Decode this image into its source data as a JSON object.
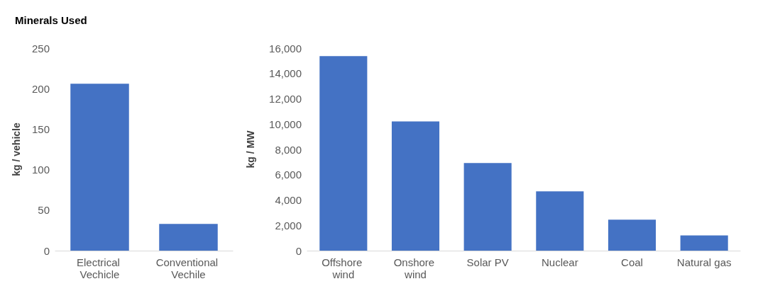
{
  "chart_data": [
    {
      "type": "bar",
      "title": "Minerals Used",
      "ylabel": "kg / vehicle",
      "categories": [
        "Electrical Vechicle",
        "Conventional Vechile"
      ],
      "values": [
        206,
        33
      ],
      "color": "#4472c4",
      "ylim": [
        0,
        250
      ],
      "yticks": [
        0,
        50,
        100,
        150,
        200,
        250
      ],
      "grid": false
    },
    {
      "type": "bar",
      "ylabel": "kg / MW",
      "categories": [
        "Offshore wind",
        "Onshore wind",
        "Solar PV",
        "Nuclear",
        "Coal",
        "Natural gas"
      ],
      "values": [
        15370,
        10210,
        6930,
        4690,
        2450,
        1200
      ],
      "color": "#4472c4",
      "ylim": [
        0,
        16000
      ],
      "yticks": [
        0,
        {
          "value": 2000,
          "label": "2,000"
        },
        {
          "value": 4000,
          "label": "4,000"
        },
        {
          "value": 6000,
          "label": "6,000"
        },
        {
          "value": 8000,
          "label": "8,000"
        },
        {
          "value": 10000,
          "label": "10,000"
        },
        {
          "value": 12000,
          "label": "12,000"
        },
        {
          "value": 14000,
          "label": "14,000"
        },
        {
          "value": 16000,
          "label": "16,000"
        }
      ],
      "grid": false
    }
  ]
}
